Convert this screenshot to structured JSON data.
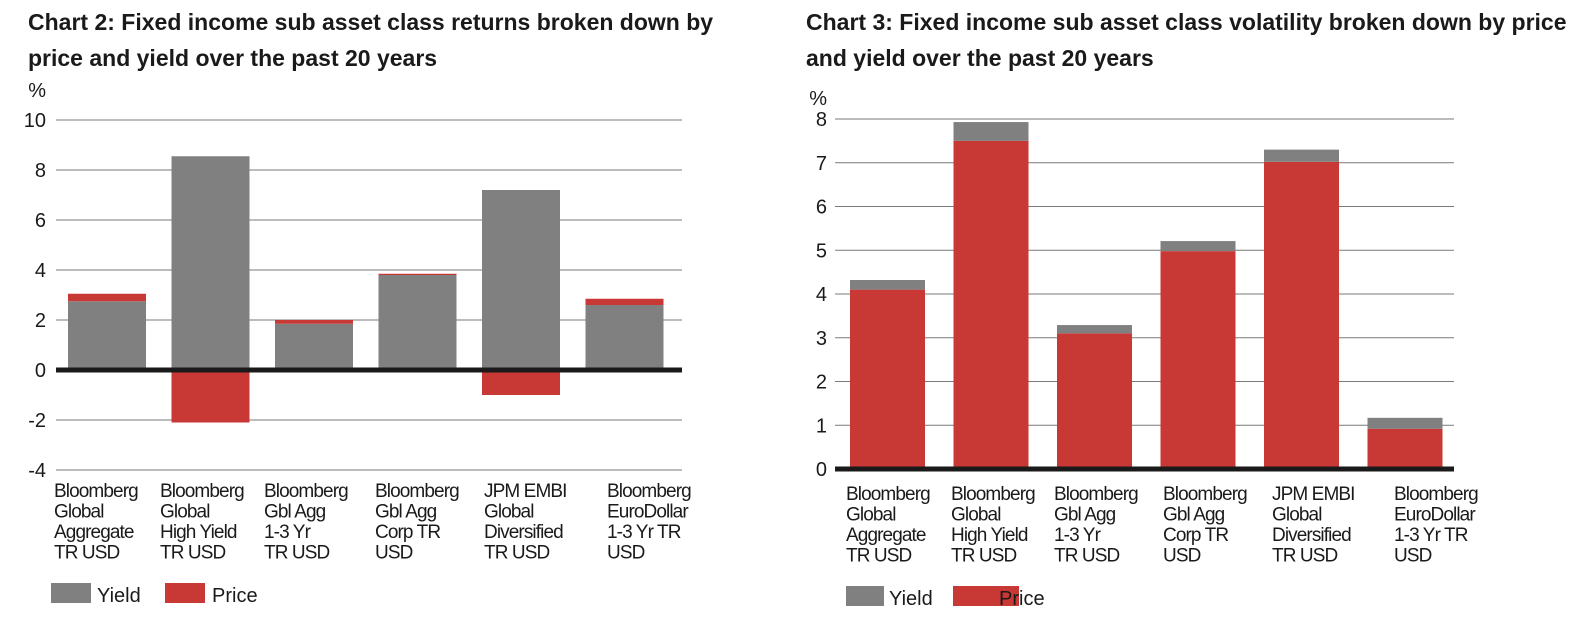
{
  "colors": {
    "yield": "#808080",
    "price": "#c83834",
    "grid": "#7a7a7a",
    "zero": "#1a1a1a"
  },
  "chart_data": [
    {
      "type": "bar",
      "stacked": true,
      "title": "Chart 2: Fixed income sub asset class returns broken down by price and yield over the past 20 years",
      "unit_label": "%",
      "categories": [
        [
          "Bloomberg",
          "Global",
          "Aggregate",
          "TR USD"
        ],
        [
          "Bloomberg",
          "Global",
          "High Yield",
          "TR USD"
        ],
        [
          "Bloomberg",
          "Gbl Agg",
          "1-3 Yr",
          "TR USD"
        ],
        [
          "Bloomberg",
          "Gbl Agg",
          "Corp TR",
          "USD"
        ],
        [
          "JPM EMBI",
          "Global",
          "Diversified",
          "TR USD"
        ],
        [
          "Bloomberg",
          "EuroDollar",
          "1-3 Yr TR",
          "USD"
        ]
      ],
      "series": [
        {
          "name": "Yield",
          "values": [
            2.75,
            8.55,
            1.85,
            3.8,
            7.2,
            2.6
          ]
        },
        {
          "name": "Price",
          "values": [
            0.3,
            -2.1,
            0.15,
            0.05,
            -1.0,
            0.25
          ]
        }
      ],
      "yticks": [
        "-4",
        "-2",
        "0",
        "2",
        "4",
        "6",
        "8",
        "10"
      ],
      "ylim": [
        -4,
        10
      ],
      "grid": true,
      "legend_position": "bottom-left"
    },
    {
      "type": "bar",
      "stacked": true,
      "title": "Chart 3: Fixed income sub asset class volatility broken down by price and yield over the past 20 years",
      "unit_label": "%",
      "categories": [
        [
          "Bloomberg",
          "Global",
          "Aggregate",
          "TR USD"
        ],
        [
          "Bloomberg",
          "Global",
          "High Yield",
          "TR USD"
        ],
        [
          "Bloomberg",
          "Gbl Agg",
          "1-3 Yr",
          "TR USD"
        ],
        [
          "Bloomberg",
          "Gbl Agg",
          "Corp TR",
          "USD"
        ],
        [
          "JPM EMBI",
          "Global",
          "Diversified",
          "TR USD"
        ],
        [
          "Bloomberg",
          "EuroDollar",
          "1-3 Yr TR",
          "USD"
        ]
      ],
      "series": [
        {
          "name": "Price",
          "values": [
            4.1,
            7.5,
            3.1,
            4.98,
            7.02,
            0.92
          ]
        },
        {
          "name": "Yield",
          "values": [
            0.22,
            0.43,
            0.19,
            0.23,
            0.28,
            0.25
          ]
        }
      ],
      "yticks": [
        "0",
        "1",
        "2",
        "3",
        "4",
        "5",
        "6",
        "7",
        "8"
      ],
      "ylim": [
        0,
        8
      ],
      "grid": true,
      "legend_position": "bottom-left"
    }
  ]
}
